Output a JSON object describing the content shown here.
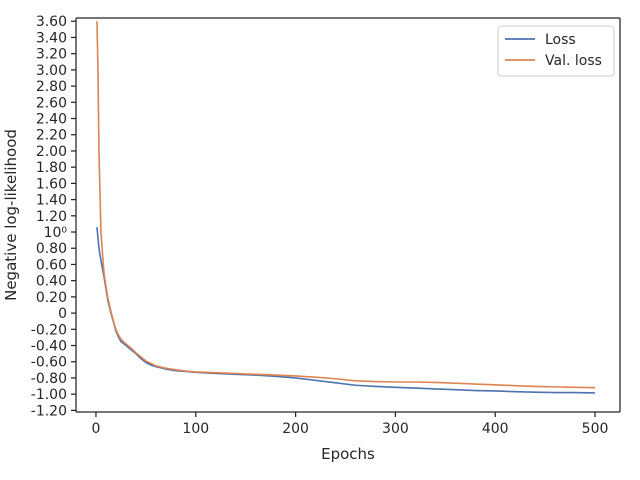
{
  "chart_data": {
    "type": "line",
    "xlabel": "Epochs",
    "ylabel": "Negative log-likelihood",
    "xlim": [
      -20,
      525
    ],
    "ylim": [
      -1.22,
      3.64
    ],
    "x_ticks": [
      {
        "value": 0,
        "label": "0"
      },
      {
        "value": 100,
        "label": "100"
      },
      {
        "value": 200,
        "label": "200"
      },
      {
        "value": 300,
        "label": "300"
      },
      {
        "value": 400,
        "label": "400"
      },
      {
        "value": 500,
        "label": "500"
      }
    ],
    "y_ticks": [
      {
        "value": -1.2,
        "label": "-1.20"
      },
      {
        "value": -1.0,
        "label": "-1.00"
      },
      {
        "value": -0.8,
        "label": "-0.80"
      },
      {
        "value": -0.6,
        "label": "-0.60"
      },
      {
        "value": -0.4,
        "label": "-0.40"
      },
      {
        "value": -0.2,
        "label": "-0.20"
      },
      {
        "value": 0.0,
        "label": "0"
      },
      {
        "value": 0.2,
        "label": "0.20"
      },
      {
        "value": 0.4,
        "label": "0.40"
      },
      {
        "value": 0.6,
        "label": "0.60"
      },
      {
        "value": 0.8,
        "label": "0.80"
      },
      {
        "value": 1.0,
        "label": "10⁰"
      },
      {
        "value": 1.2,
        "label": "1.20"
      },
      {
        "value": 1.4,
        "label": "1.40"
      },
      {
        "value": 1.6,
        "label": "1.60"
      },
      {
        "value": 1.8,
        "label": "1.80"
      },
      {
        "value": 2.0,
        "label": "2.00"
      },
      {
        "value": 2.2,
        "label": "2.20"
      },
      {
        "value": 2.4,
        "label": "2.40"
      },
      {
        "value": 2.6,
        "label": "2.60"
      },
      {
        "value": 2.8,
        "label": "2.80"
      },
      {
        "value": 3.0,
        "label": "3.00"
      },
      {
        "value": 3.2,
        "label": "3.20"
      },
      {
        "value": 3.4,
        "label": "3.40"
      },
      {
        "value": 3.6,
        "label": "3.60"
      }
    ],
    "grid": false,
    "legend": "top-right",
    "series": [
      {
        "name": "Loss",
        "color": "#4c72b0",
        "x": [
          1,
          3,
          5,
          8,
          10,
          12,
          15,
          18,
          20,
          22,
          25,
          28,
          30,
          35,
          40,
          45,
          50,
          55,
          60,
          70,
          80,
          90,
          100,
          120,
          140,
          160,
          180,
          200,
          220,
          240,
          260,
          280,
          300,
          320,
          340,
          360,
          380,
          400,
          420,
          440,
          460,
          480,
          500
        ],
        "y": [
          1.06,
          0.8,
          0.65,
          0.45,
          0.3,
          0.15,
          0.0,
          -0.13,
          -0.22,
          -0.28,
          -0.35,
          -0.38,
          -0.4,
          -0.45,
          -0.5,
          -0.56,
          -0.61,
          -0.64,
          -0.66,
          -0.69,
          -0.71,
          -0.72,
          -0.73,
          -0.745,
          -0.755,
          -0.765,
          -0.78,
          -0.8,
          -0.83,
          -0.86,
          -0.89,
          -0.905,
          -0.915,
          -0.925,
          -0.935,
          -0.945,
          -0.955,
          -0.96,
          -0.97,
          -0.975,
          -0.98,
          -0.98,
          -0.985
        ]
      },
      {
        "name": "Val. loss",
        "color": "#dd8452",
        "x": [
          1,
          2,
          3,
          5,
          8,
          10,
          12,
          15,
          18,
          20,
          22,
          25,
          28,
          30,
          35,
          40,
          45,
          50,
          55,
          60,
          70,
          80,
          90,
          100,
          120,
          140,
          160,
          180,
          200,
          220,
          240,
          260,
          280,
          300,
          320,
          340,
          360,
          380,
          400,
          420,
          440,
          460,
          480,
          500
        ],
        "y": [
          3.6,
          3.0,
          2.0,
          1.0,
          0.5,
          0.33,
          0.18,
          0.02,
          -0.12,
          -0.2,
          -0.26,
          -0.32,
          -0.36,
          -0.38,
          -0.43,
          -0.49,
          -0.54,
          -0.59,
          -0.62,
          -0.65,
          -0.68,
          -0.7,
          -0.715,
          -0.725,
          -0.735,
          -0.745,
          -0.755,
          -0.765,
          -0.775,
          -0.79,
          -0.81,
          -0.835,
          -0.845,
          -0.85,
          -0.85,
          -0.855,
          -0.865,
          -0.875,
          -0.885,
          -0.895,
          -0.905,
          -0.91,
          -0.915,
          -0.92
        ]
      }
    ]
  }
}
